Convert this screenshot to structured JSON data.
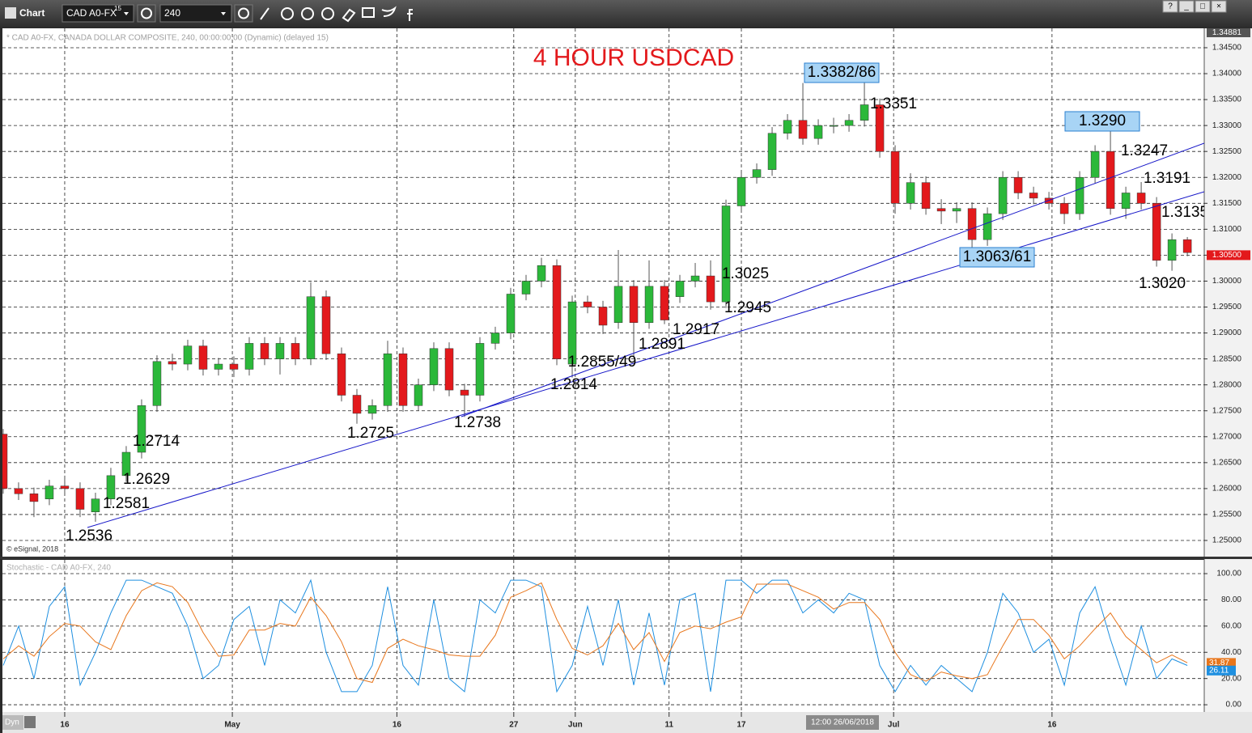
{
  "toolbar": {
    "title": "Chart",
    "symbol": "CAD A0-FX",
    "symbol_sup": "15",
    "interval": "240",
    "window_buttons": [
      "?",
      "_",
      "□",
      "×"
    ]
  },
  "info_line": "* CAD A0-FX, CANADA DOLLAR COMPOSITE, 240, 00:00:00:00 (Dynamic) (delayed 15)",
  "copyright": "© eSignal, 2018",
  "study_line": "Stochastic - CAD A0-FX, 240",
  "status_bar": {
    "mode": "Dyn",
    "cursor_date": "12:00 26/06/2018"
  },
  "chart_data": [
    {
      "type": "candlestick",
      "title": "4 HOUR USDCAD",
      "up_color": "#2bb83a",
      "down_color": "#e3191c",
      "x": [
        -4,
        -3,
        -2,
        -1,
        0,
        1,
        2,
        3,
        4,
        5,
        6,
        7,
        8,
        9,
        10,
        11,
        12,
        13,
        14,
        15,
        16,
        17,
        18,
        19,
        20,
        21,
        22,
        23,
        24,
        25,
        26,
        27,
        28,
        29,
        30,
        31,
        32,
        33,
        34,
        35,
        36,
        37,
        38,
        39,
        40,
        41,
        42,
        43,
        44,
        45,
        46,
        47,
        48,
        49,
        50,
        51,
        52,
        53,
        54,
        55,
        56,
        57,
        58,
        59,
        60,
        61,
        62,
        63,
        64,
        65,
        66,
        67,
        68,
        69,
        70,
        71,
        72,
        73
      ],
      "open": [
        1.2705,
        1.26,
        1.259,
        1.258,
        1.2605,
        1.26,
        1.2555,
        1.258,
        1.2625,
        1.267,
        1.276,
        1.2845,
        1.284,
        1.2875,
        1.283,
        1.284,
        1.283,
        1.288,
        1.285,
        1.288,
        1.285,
        1.297,
        1.286,
        1.278,
        1.2745,
        1.276,
        1.286,
        1.276,
        1.28,
        1.287,
        1.279,
        1.278,
        1.288,
        1.29,
        1.2975,
        1.3,
        1.303,
        1.284,
        1.296,
        1.295,
        1.292,
        1.299,
        1.292,
        1.299,
        1.297,
        1.3,
        1.301,
        1.296,
        1.3145,
        1.32,
        1.3215,
        1.3285,
        1.331,
        1.3275,
        1.33,
        1.33,
        1.331,
        1.334,
        1.325,
        1.315,
        1.319,
        1.314,
        1.3135,
        1.314,
        1.308,
        1.313,
        1.32,
        1.317,
        1.316,
        1.315,
        1.313,
        1.32,
        1.325,
        1.314,
        1.317,
        1.315,
        1.304,
        1.308
      ],
      "high": [
        1.2715,
        1.2612,
        1.2602,
        1.2617,
        1.2625,
        1.2612,
        1.2592,
        1.264,
        1.2682,
        1.2772,
        1.2857,
        1.286,
        1.2887,
        1.2887,
        1.2852,
        1.2855,
        1.2892,
        1.2892,
        1.2892,
        1.2892,
        1.2998,
        1.2982,
        1.2872,
        1.2792,
        1.2772,
        1.2885,
        1.2872,
        1.2812,
        1.2882,
        1.2882,
        1.2802,
        1.2892,
        1.2912,
        1.2987,
        1.3012,
        1.3045,
        1.3042,
        1.2972,
        1.2972,
        1.2962,
        1.306,
        1.3002,
        1.304,
        1.3002,
        1.3012,
        1.3035,
        1.304,
        1.3157,
        1.3212,
        1.3227,
        1.3297,
        1.3322,
        1.3382,
        1.3312,
        1.3315,
        1.3322,
        1.3386,
        1.3352,
        1.3262,
        1.3208,
        1.3202,
        1.3158,
        1.3152,
        1.3152,
        1.3142,
        1.3212,
        1.3212,
        1.3182,
        1.3172,
        1.3162,
        1.3212,
        1.3262,
        1.329,
        1.3182,
        1.3191,
        1.3162,
        1.3092,
        1.3085
      ],
      "low": [
        1.259,
        1.2578,
        1.2545,
        1.2568,
        1.2588,
        1.2545,
        1.2536,
        1.2568,
        1.2613,
        1.2658,
        1.2748,
        1.2828,
        1.2828,
        1.2818,
        1.2818,
        1.2815,
        1.2818,
        1.2838,
        1.282,
        1.2838,
        1.2838,
        1.2848,
        1.2768,
        1.2725,
        1.2733,
        1.2748,
        1.2748,
        1.275,
        1.2788,
        1.2778,
        1.2738,
        1.2768,
        1.2868,
        1.2888,
        1.2963,
        1.2988,
        1.2838,
        1.2814,
        1.2938,
        1.2898,
        1.2908,
        1.2855,
        1.2908,
        1.2917,
        1.2958,
        1.2988,
        1.2945,
        1.2948,
        1.3133,
        1.3188,
        1.3203,
        1.3273,
        1.3263,
        1.3263,
        1.3285,
        1.3288,
        1.3298,
        1.3238,
        1.313,
        1.3138,
        1.3128,
        1.311,
        1.3112,
        1.3061,
        1.3068,
        1.3118,
        1.3158,
        1.3148,
        1.3138,
        1.311,
        1.3118,
        1.3188,
        1.3128,
        1.312,
        1.3138,
        1.3028,
        1.302,
        1.3048
      ],
      "close": [
        1.26,
        1.259,
        1.2575,
        1.2605,
        1.26,
        1.256,
        1.258,
        1.2625,
        1.267,
        1.276,
        1.2845,
        1.284,
        1.2875,
        1.283,
        1.284,
        1.283,
        1.288,
        1.285,
        1.288,
        1.285,
        1.297,
        1.286,
        1.278,
        1.2745,
        1.276,
        1.286,
        1.276,
        1.28,
        1.287,
        1.279,
        1.278,
        1.288,
        1.29,
        1.2975,
        1.3,
        1.303,
        1.285,
        1.296,
        1.295,
        1.2915,
        1.299,
        1.292,
        1.299,
        1.2925,
        1.3,
        1.301,
        1.296,
        1.3145,
        1.32,
        1.3215,
        1.3285,
        1.331,
        1.3275,
        1.33,
        1.33,
        1.331,
        1.334,
        1.325,
        1.315,
        1.319,
        1.314,
        1.3135,
        1.314,
        1.308,
        1.313,
        1.32,
        1.317,
        1.316,
        1.315,
        1.313,
        1.32,
        1.325,
        1.314,
        1.317,
        1.315,
        1.304,
        1.308,
        1.3055
      ],
      "xlim": [
        -4.05,
        74.1
      ],
      "xticks": [
        {
          "value": 0,
          "label": "16"
        },
        {
          "value": 10.9,
          "label": "May"
        },
        {
          "value": 21.6,
          "label": "16"
        },
        {
          "value": 29.2,
          "label": "27"
        },
        {
          "value": 33.2,
          "label": "Jun"
        },
        {
          "value": 39.3,
          "label": "11"
        },
        {
          "value": 44,
          "label": "17"
        },
        {
          "value": 53.9,
          "label": "Jul"
        },
        {
          "value": 64.2,
          "label": "16"
        }
      ],
      "ylim": [
        1.24688,
        1.34874
      ],
      "yticks": [
        {
          "value": 1.25,
          "label": "1.25000"
        },
        {
          "value": 1.255,
          "label": "1.25500"
        },
        {
          "value": 1.26,
          "label": "1.26000"
        },
        {
          "value": 1.265,
          "label": "1.26500"
        },
        {
          "value": 1.27,
          "label": "1.27000"
        },
        {
          "value": 1.275,
          "label": "1.27500"
        },
        {
          "value": 1.28,
          "label": "1.28000"
        },
        {
          "value": 1.285,
          "label": "1.28500"
        },
        {
          "value": 1.29,
          "label": "1.29000"
        },
        {
          "value": 1.295,
          "label": "1.29500"
        },
        {
          "value": 1.3,
          "label": "1.30000"
        },
        {
          "value": 1.305,
          "label": "1.30500"
        },
        {
          "value": 1.31,
          "label": "1.31000"
        },
        {
          "value": 1.315,
          "label": "1.31500"
        },
        {
          "value": 1.32,
          "label": "1.32000"
        },
        {
          "value": 1.325,
          "label": "1.32500"
        },
        {
          "value": 1.33,
          "label": "1.33000"
        },
        {
          "value": 1.335,
          "label": "1.33500"
        },
        {
          "value": 1.34,
          "label": "1.34000"
        },
        {
          "value": 1.345,
          "label": "1.34500"
        }
      ],
      "scale_top_label": {
        "value": 1.34881,
        "label": "1.34881"
      },
      "last_price": {
        "value": 1.305,
        "label": "1.30500"
      },
      "grid": true,
      "annotations": [
        "1.3382/86",
        "1.3351",
        "1.3290",
        "1.3247",
        "1.3191",
        "1.3135",
        "1.3063/61",
        "1.3020",
        "1.3025",
        "1.2945",
        "1.2917",
        "1.2891",
        "1.2855/49",
        "1.2814",
        "1.2738",
        "1.2725",
        "1.2714",
        "1.2629",
        "1.2581",
        "1.2536"
      ]
    },
    {
      "type": "line",
      "x": [
        -4,
        -3,
        -2,
        -1,
        0,
        1,
        2,
        3,
        4,
        5,
        6,
        7,
        8,
        9,
        10,
        11,
        12,
        13,
        14,
        15,
        16,
        17,
        18,
        19,
        20,
        21,
        22,
        23,
        24,
        25,
        26,
        27,
        28,
        29,
        30,
        31,
        32,
        33,
        34,
        35,
        36,
        37,
        38,
        39,
        40,
        41,
        42,
        43,
        44,
        45,
        46,
        47,
        48,
        49,
        50,
        51,
        52,
        53,
        54,
        55,
        56,
        57,
        58,
        59,
        60,
        61,
        62,
        63,
        64,
        65,
        66,
        67,
        68,
        69,
        70,
        71,
        72,
        73
      ],
      "series": [
        {
          "color": "#1e8fe0",
          "values": [
            30,
            60,
            20,
            75,
            90,
            15,
            40,
            70,
            95,
            95,
            90,
            85,
            60,
            20,
            30,
            65,
            75,
            30,
            80,
            70,
            95,
            40,
            10,
            10,
            30,
            90,
            30,
            15,
            80,
            20,
            10,
            80,
            70,
            95,
            95,
            90,
            10,
            30,
            75,
            30,
            80,
            15,
            70,
            15,
            80,
            85,
            10,
            95,
            95,
            85,
            95,
            95,
            70,
            80,
            70,
            85,
            80,
            30,
            10,
            30,
            15,
            30,
            20,
            10,
            40,
            85,
            70,
            40,
            50,
            15,
            70,
            90,
            50,
            15,
            60,
            20,
            35,
            30
          ]
        },
        {
          "color": "#e8761c",
          "values": [
            35,
            45,
            37,
            52,
            62,
            60,
            48,
            42,
            68,
            87,
            93,
            90,
            78,
            55,
            37,
            38,
            57,
            57,
            62,
            60,
            82,
            68,
            48,
            20,
            17,
            43,
            50,
            45,
            42,
            38,
            37,
            37,
            53,
            82,
            87,
            93,
            65,
            43,
            38,
            45,
            62,
            42,
            55,
            33,
            55,
            60,
            58,
            63,
            67,
            92,
            92,
            92,
            87,
            82,
            73,
            78,
            78,
            65,
            40,
            23,
            18,
            25,
            22,
            20,
            23,
            45,
            65,
            65,
            53,
            35,
            45,
            58,
            70,
            52,
            42,
            32,
            38,
            32
          ]
        }
      ],
      "xlim": [
        -4.05,
        74.1
      ],
      "ylim": [
        -5.5,
        110.5
      ],
      "yticks": [
        {
          "value": 0,
          "label": "0.00"
        },
        {
          "value": 20,
          "label": "20.00"
        },
        {
          "value": 40,
          "label": "40.00"
        },
        {
          "value": 60,
          "label": "60.00"
        },
        {
          "value": 80,
          "label": "80.00"
        },
        {
          "value": 100,
          "label": "100.00"
        }
      ],
      "last_values": [
        31.87,
        26.11
      ],
      "grid": true
    }
  ]
}
